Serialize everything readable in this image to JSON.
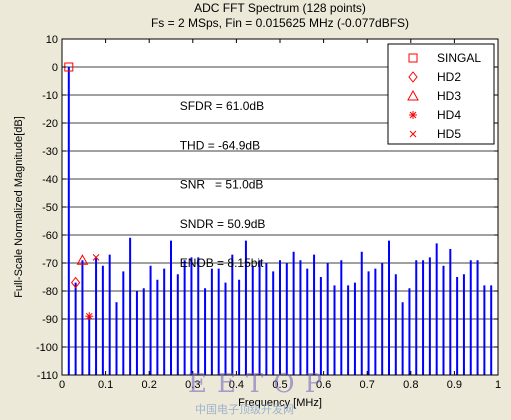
{
  "chart_data": {
    "type": "bar",
    "title": "ADC FFT Spectrum (128 points)",
    "subtitle": "Fs = 2 MSps, Fin = 0.015625 MHz (-0.077dBFS)",
    "xlabel": "Frequency [MHz]",
    "ylabel": "Full-Scale Normalized Magnitude[dB]",
    "xlim": [
      0,
      1
    ],
    "ylim": [
      -110,
      10
    ],
    "xticks": [
      0,
      0.1,
      0.2,
      0.3,
      0.4,
      0.5,
      0.6,
      0.7,
      0.8,
      0.9,
      1
    ],
    "xtick_labels": [
      "0",
      "0.1",
      "0.2",
      "0.3",
      "0.4",
      "0.5",
      "0.6",
      "0.7",
      "0.8",
      "0.9",
      "1"
    ],
    "yticks": [
      10,
      0,
      -10,
      -20,
      -30,
      -40,
      -50,
      -60,
      -70,
      -80,
      -90,
      -100,
      -110
    ],
    "ytick_labels": [
      "10",
      "0",
      "-10",
      "-20",
      "-30",
      "-40",
      "-50",
      "-60",
      "-70",
      "-80",
      "-90",
      "-100",
      "-110"
    ],
    "grid": "horizontal",
    "series": [
      {
        "name": "spectrum",
        "color": "#0000ff",
        "x": [
          0.015625,
          0.03125,
          0.046875,
          0.0625,
          0.078125,
          0.09375,
          0.109375,
          0.125,
          0.140625,
          0.15625,
          0.171875,
          0.1875,
          0.203125,
          0.21875,
          0.234375,
          0.25,
          0.265625,
          0.28125,
          0.296875,
          0.3125,
          0.328125,
          0.34375,
          0.359375,
          0.375,
          0.390625,
          0.40625,
          0.421875,
          0.4375,
          0.453125,
          0.46875,
          0.484375,
          0.5,
          0.515625,
          0.53125,
          0.546875,
          0.5625,
          0.578125,
          0.59375,
          0.609375,
          0.625,
          0.640625,
          0.65625,
          0.671875,
          0.6875,
          0.703125,
          0.71875,
          0.734375,
          0.75,
          0.765625,
          0.78125,
          0.796875,
          0.8125,
          0.828125,
          0.84375,
          0.859375,
          0.875,
          0.890625,
          0.90625,
          0.921875,
          0.9375,
          0.953125,
          0.96875,
          0.984375
        ],
        "values": [
          0,
          -77,
          -69,
          -89,
          -68,
          -71,
          -67,
          -84,
          -73,
          -61,
          -80,
          -79,
          -71,
          -76,
          -72,
          -62,
          -74,
          -69,
          -68,
          -68,
          -79,
          -72,
          -72,
          -77,
          -67,
          -76,
          -62,
          -71,
          -69,
          -70,
          -73,
          -69,
          -70,
          -66,
          -69,
          -72,
          -67,
          -75,
          -70,
          -78,
          -69,
          -78,
          -77,
          -66,
          -73,
          -72,
          -70,
          -62,
          -74,
          -84,
          -79,
          -69,
          -69,
          -68,
          -63,
          -71,
          -65,
          -75,
          -74,
          -69,
          -69,
          -78,
          -78
        ]
      }
    ],
    "markers": [
      {
        "name": "SINGAL",
        "symbol": "square",
        "x": 0.015625,
        "y": 0
      },
      {
        "name": "HD2",
        "symbol": "diamond",
        "x": 0.03125,
        "y": -77
      },
      {
        "name": "HD3",
        "symbol": "triangle",
        "x": 0.046875,
        "y": -69
      },
      {
        "name": "HD4",
        "symbol": "asterisk",
        "x": 0.0625,
        "y": -89
      },
      {
        "name": "HD5",
        "symbol": "cross",
        "x": 0.078125,
        "y": -68
      }
    ],
    "marker_color": "#ff0000",
    "legend_position": "top-right",
    "annotations": [
      {
        "text": "SFDR = 61.0dB",
        "x": 0.27,
        "y": -14
      },
      {
        "text": "THD = -64.9dB",
        "x": 0.27,
        "y": -28
      },
      {
        "text": "SNR   = 51.0dB",
        "x": 0.27,
        "y": -42
      },
      {
        "text": "SNDR = 50.9dB",
        "x": 0.27,
        "y": -56
      },
      {
        "text": "ENOB = 8.15bit",
        "x": 0.27,
        "y": -70
      }
    ]
  },
  "watermark": {
    "text": "EETOP",
    "subtext": "中国电子顶级开发网"
  }
}
